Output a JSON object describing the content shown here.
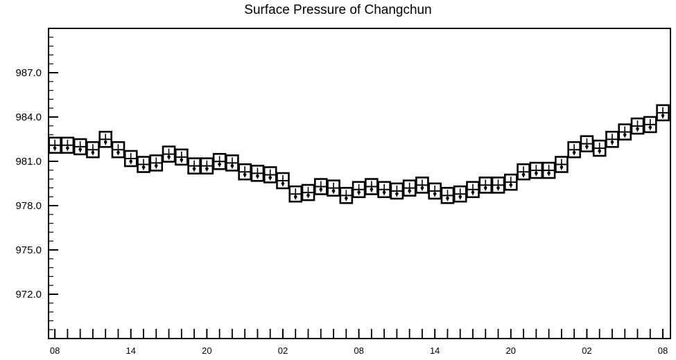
{
  "chart_data": {
    "type": "scatter",
    "title": "Surface Pressure of Changchun",
    "xlabel": "",
    "ylabel": "",
    "ylim": [
      969.0,
      990.0
    ],
    "y_ticks": [
      "987.0",
      "984.0",
      "981.0",
      "978.0",
      "975.0",
      "972.0"
    ],
    "x_tick_labels": [
      "08",
      "14",
      "20",
      "02",
      "08",
      "14",
      "20",
      "02",
      "08"
    ],
    "x_tick_hours": [
      0,
      6,
      12,
      18,
      24,
      30,
      36,
      42,
      48
    ],
    "x_range_hours": [
      -0.5,
      48.6
    ],
    "grid": false,
    "marker": "box-with-crossbar",
    "x_hours": [
      0,
      1,
      2,
      3,
      4,
      5,
      6,
      7,
      8,
      9,
      10,
      11,
      12,
      13,
      14,
      15,
      16,
      17,
      18,
      19,
      20,
      21,
      22,
      23,
      24,
      25,
      26,
      27,
      28,
      29,
      30,
      31,
      32,
      33,
      34,
      35,
      36,
      37,
      38,
      39,
      40,
      41,
      42,
      43,
      44,
      45,
      46,
      47,
      48
    ],
    "values": [
      981.9,
      981.9,
      981.8,
      981.6,
      982.3,
      981.6,
      981.0,
      980.6,
      980.7,
      981.3,
      981.1,
      980.5,
      980.5,
      980.8,
      980.7,
      980.1,
      980.0,
      979.9,
      979.5,
      978.6,
      978.7,
      979.1,
      979.0,
      978.5,
      978.9,
      979.1,
      978.9,
      978.8,
      979.0,
      979.2,
      978.8,
      978.5,
      978.6,
      978.9,
      979.2,
      979.2,
      979.4,
      980.1,
      980.2,
      980.2,
      980.6,
      981.6,
      982.0,
      981.7,
      982.3,
      982.8,
      983.2,
      983.3,
      984.1
    ]
  }
}
